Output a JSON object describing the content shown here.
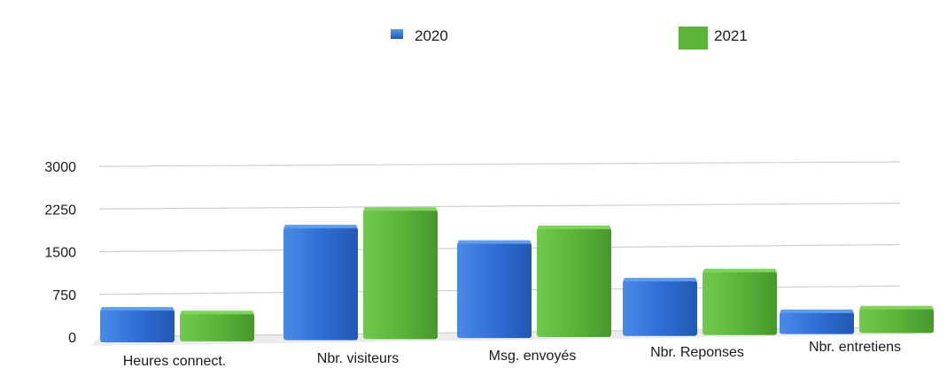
{
  "chart_data": {
    "type": "bar",
    "categories": [
      "Heures connect.",
      "Nbr. visiteurs",
      "Msg. envoyés",
      "Nbr. Reponses",
      "Nbr. entretiens"
    ],
    "series": [
      {
        "name": "2020",
        "values": [
          480,
          1900,
          1600,
          900,
          300
        ],
        "color": "#2f6fd6"
      },
      {
        "name": "2021",
        "values": [
          400,
          2200,
          1850,
          1050,
          350
        ],
        "color": "#5bb53a"
      }
    ],
    "yticks": [
      0,
      750,
      1500,
      2250,
      3000
    ],
    "ylim": [
      0,
      3000
    ],
    "grid": true,
    "legend_position": "top",
    "style": "3d-perspective"
  }
}
